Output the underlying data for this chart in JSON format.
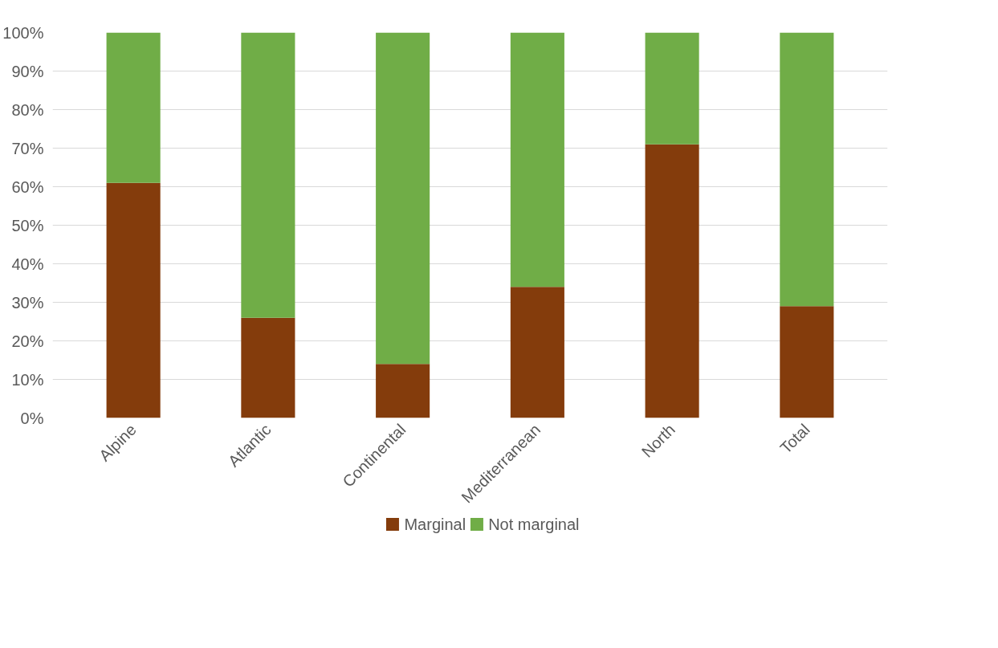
{
  "chart_data": {
    "type": "bar",
    "stacked": true,
    "categories": [
      "Alpine",
      "Atlantic",
      "Continental",
      "Mediterranean",
      "North",
      "Total"
    ],
    "series": [
      {
        "name": "Marginal",
        "color": "#843c0c",
        "values": [
          61,
          26,
          14,
          34,
          71,
          29
        ]
      },
      {
        "name": "Not marginal",
        "color": "#70ad47",
        "values": [
          39,
          74,
          86,
          66,
          29,
          71
        ]
      }
    ],
    "ylim": [
      0,
      100
    ],
    "yticks": [
      {
        "value": 0,
        "label": "0%"
      },
      {
        "value": 10,
        "label": "10%"
      },
      {
        "value": 20,
        "label": "20%"
      },
      {
        "value": 30,
        "label": "30%"
      },
      {
        "value": 40,
        "label": "40%"
      },
      {
        "value": 50,
        "label": "50%"
      },
      {
        "value": 60,
        "label": "60%"
      },
      {
        "value": 70,
        "label": "70%"
      },
      {
        "value": 80,
        "label": "80%"
      },
      {
        "value": 90,
        "label": "90%"
      },
      {
        "value": 100,
        "label": "100%"
      }
    ],
    "grid": "y",
    "legend": "bottom"
  }
}
